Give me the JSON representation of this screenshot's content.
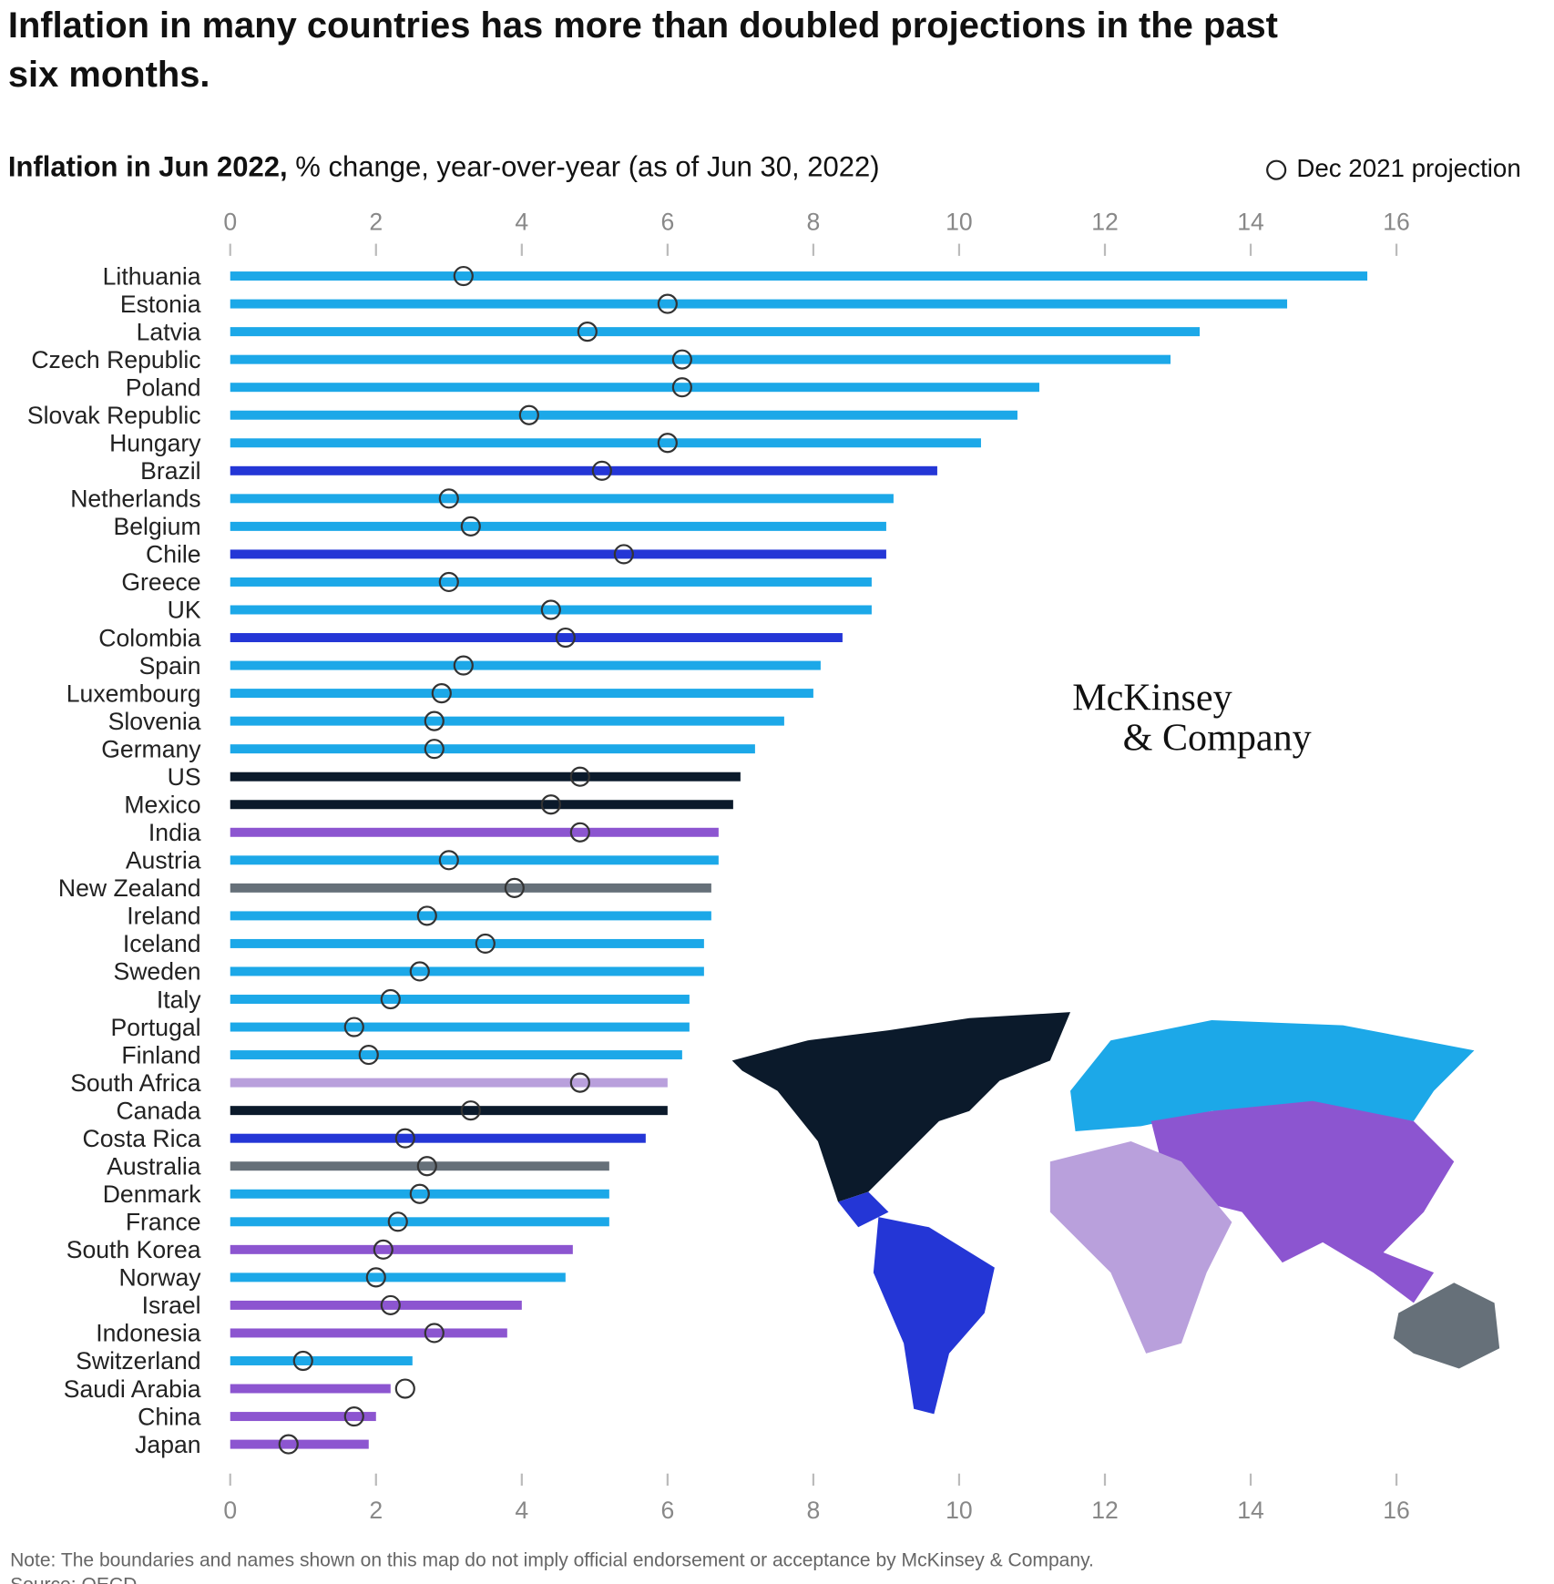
{
  "chart_data": {
    "type": "dot-bar",
    "title": "Inflation in many countries has more than doubled projections in the past six months.",
    "subtitle_bold": "Inflation in Jun 2022,",
    "subtitle": "% change, year-over-year (as of Jun 30, 2022)",
    "categories": [
      "Lithuania",
      "Estonia",
      "Latvia",
      "Czech Republic",
      "Poland",
      "Slovak Republic",
      "Hungary",
      "Brazil",
      "Netherlands",
      "Belgium",
      "Chile",
      "Greece",
      "UK",
      "Colombia",
      "Spain",
      "Luxembourg",
      "Slovenia",
      "Germany",
      "US",
      "Mexico",
      "India",
      "Austria",
      "New Zealand",
      "Ireland",
      "Iceland",
      "Sweden",
      "Italy",
      "Portugal",
      "Finland",
      "South Africa",
      "Canada",
      "Costa Rica",
      "Australia",
      "Denmark",
      "France",
      "South Korea",
      "Norway",
      "Israel",
      "Indonesia",
      "Switzerland",
      "Saudi Arabia",
      "China",
      "Japan"
    ],
    "values": [
      15.6,
      14.5,
      13.3,
      12.9,
      11.1,
      10.8,
      10.3,
      9.7,
      9.1,
      9.0,
      9.0,
      8.8,
      8.8,
      8.4,
      8.1,
      8.0,
      7.6,
      7.2,
      7.0,
      6.9,
      6.7,
      6.7,
      6.6,
      6.6,
      6.5,
      6.5,
      6.3,
      6.3,
      6.2,
      6.0,
      6.0,
      5.7,
      5.2,
      5.2,
      5.2,
      4.7,
      4.6,
      4.0,
      3.8,
      2.5,
      2.2,
      2.0,
      1.9
    ],
    "colors": [
      "#1ca8e8",
      "#1ca8e8",
      "#1ca8e8",
      "#1ca8e8",
      "#1ca8e8",
      "#1ca8e8",
      "#1ca8e8",
      "#2436d6",
      "#1ca8e8",
      "#1ca8e8",
      "#2436d6",
      "#1ca8e8",
      "#1ca8e8",
      "#2436d6",
      "#1ca8e8",
      "#1ca8e8",
      "#1ca8e8",
      "#1ca8e8",
      "#0b1a2b",
      "#0b1a2b",
      "#8c55d0",
      "#1ca8e8",
      "#667079",
      "#1ca8e8",
      "#1ca8e8",
      "#1ca8e8",
      "#1ca8e8",
      "#1ca8e8",
      "#1ca8e8",
      "#b9a0dc",
      "#0b1a2b",
      "#2436d6",
      "#667079",
      "#1ca8e8",
      "#1ca8e8",
      "#8c55d0",
      "#1ca8e8",
      "#8c55d0",
      "#8c55d0",
      "#1ca8e8",
      "#8c55d0",
      "#8c55d0",
      "#8c55d0"
    ],
    "projection": {
      "name": "Dec 2021 projection",
      "values": [
        3.2,
        6.0,
        4.9,
        6.2,
        6.2,
        4.1,
        6.0,
        5.1,
        3.0,
        3.3,
        5.4,
        3.0,
        4.4,
        4.6,
        3.2,
        2.9,
        2.8,
        2.8,
        4.8,
        4.4,
        4.8,
        3.0,
        3.9,
        2.7,
        3.5,
        2.6,
        2.2,
        1.7,
        1.9,
        4.8,
        3.3,
        2.4,
        2.7,
        2.6,
        2.3,
        2.1,
        2.0,
        2.2,
        2.8,
        1.0,
        2.4,
        1.7,
        0.8
      ]
    },
    "xlim": [
      0,
      16
    ],
    "xticks": [
      0,
      2,
      4,
      6,
      8,
      10,
      12,
      14,
      16
    ],
    "logo": [
      "McKinsey",
      "& Company"
    ],
    "note": "Note: The boundaries and names shown on this map do not imply official endorsement or acceptance by McKinsey & Company.",
    "source": "Source: OECD"
  }
}
